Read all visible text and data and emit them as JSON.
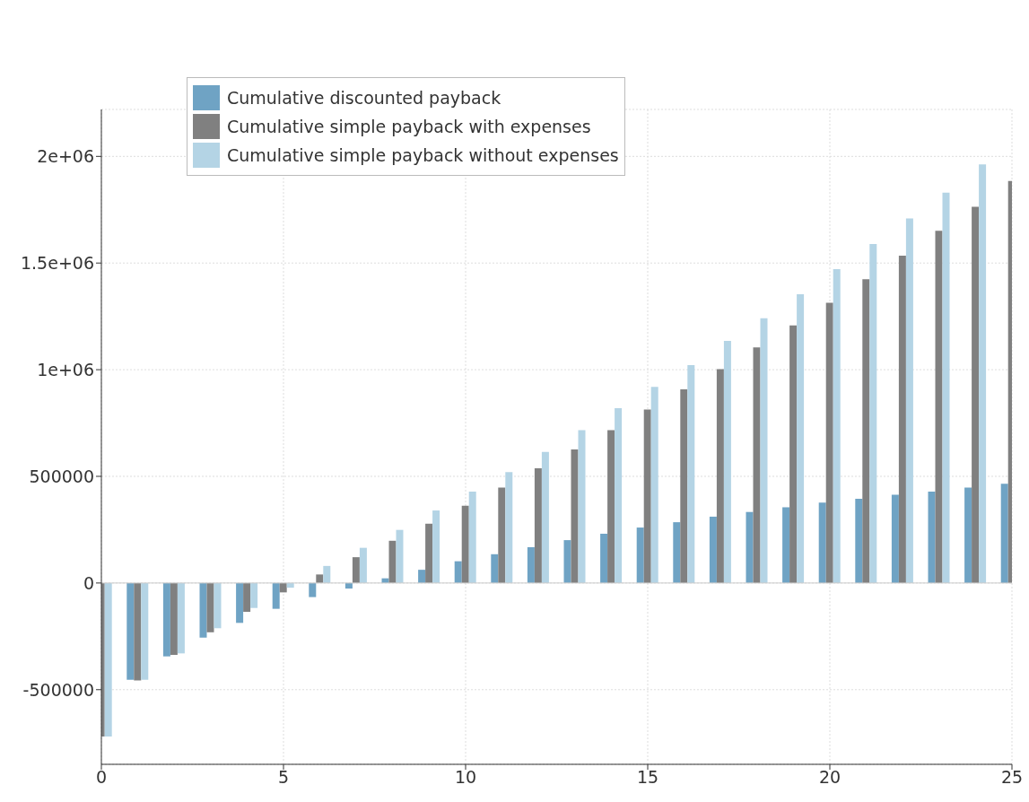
{
  "chart_data": {
    "type": "bar",
    "x": [
      0,
      1,
      2,
      3,
      4,
      5,
      6,
      7,
      8,
      9,
      10,
      11,
      12,
      13,
      14,
      15,
      16,
      17,
      18,
      19,
      20,
      21,
      22,
      23,
      24,
      25
    ],
    "xlim": [
      0,
      25
    ],
    "xticks": [
      0,
      5,
      10,
      15,
      20,
      25
    ],
    "ylim": [
      -850000,
      2220000
    ],
    "yticks": [
      -500000,
      0,
      500000,
      {
        "value": 1000000,
        "label": "1e+06"
      },
      {
        "value": 1500000,
        "label": "1.5e+06"
      },
      {
        "value": 2000000,
        "label": "2e+06"
      }
    ],
    "grid": true,
    "legend": "top left",
    "series": [
      {
        "name": "Cumulative discounted payback",
        "color": "#6fa3c4",
        "values": [
          null,
          -454000,
          -344000,
          -256000,
          -187000,
          -121000,
          -66000,
          -26000,
          22000,
          62000,
          102000,
          135000,
          168000,
          201000,
          231000,
          260000,
          285000,
          311000,
          333000,
          355000,
          377000,
          395000,
          414000,
          428000,
          447000,
          465000
        ]
      },
      {
        "name": "Cumulative simple payback with expenses",
        "color": "#808080",
        "values": [
          -720000,
          -457000,
          -337000,
          -231000,
          -135000,
          -44000,
          40000,
          121000,
          198000,
          278000,
          362000,
          447000,
          538000,
          626000,
          717000,
          813000,
          908000,
          1003000,
          1105000,
          1208000,
          1314000,
          1424000,
          1534000,
          1651000,
          1764000,
          1885000
        ]
      },
      {
        "name": "Cumulative simple payback without expenses",
        "color": "#b4d4e5",
        "values": [
          -720000,
          -454000,
          -330000,
          -212000,
          -117000,
          -22000,
          80000,
          165000,
          249000,
          340000,
          428000,
          520000,
          615000,
          717000,
          820000,
          919000,
          1021000,
          1135000,
          1241000,
          1354000,
          1471000,
          1589000,
          1709000,
          1830000,
          1962000,
          null
        ]
      }
    ]
  }
}
